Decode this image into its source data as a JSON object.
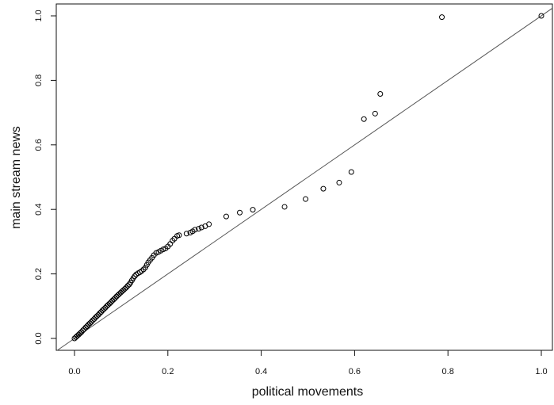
{
  "chart_data": {
    "type": "scatter",
    "title": "",
    "xlabel": "political movements",
    "ylabel": "main stream news",
    "xlim": [
      0,
      1
    ],
    "ylim": [
      0,
      1
    ],
    "x_ticks": [
      "0.0",
      "0.2",
      "0.4",
      "0.6",
      "0.8",
      "1.0"
    ],
    "y_ticks": [
      "0.0",
      "0.2",
      "0.4",
      "0.6",
      "0.8",
      "1.0"
    ],
    "reference_line": "y = x",
    "grid": false,
    "marker": "open-circle",
    "point_color": "#000000",
    "line_color": "#555555",
    "points": [
      [
        0.0,
        0.0
      ],
      [
        0.003,
        0.004
      ],
      [
        0.006,
        0.008
      ],
      [
        0.009,
        0.012
      ],
      [
        0.012,
        0.016
      ],
      [
        0.015,
        0.02
      ],
      [
        0.018,
        0.025
      ],
      [
        0.021,
        0.029
      ],
      [
        0.024,
        0.034
      ],
      [
        0.027,
        0.038
      ],
      [
        0.03,
        0.043
      ],
      [
        0.033,
        0.047
      ],
      [
        0.036,
        0.051
      ],
      [
        0.039,
        0.056
      ],
      [
        0.042,
        0.06
      ],
      [
        0.045,
        0.065
      ],
      [
        0.048,
        0.069
      ],
      [
        0.051,
        0.073
      ],
      [
        0.054,
        0.078
      ],
      [
        0.057,
        0.082
      ],
      [
        0.06,
        0.087
      ],
      [
        0.063,
        0.091
      ],
      [
        0.066,
        0.095
      ],
      [
        0.069,
        0.1
      ],
      [
        0.072,
        0.104
      ],
      [
        0.075,
        0.108
      ],
      [
        0.078,
        0.112
      ],
      [
        0.081,
        0.117
      ],
      [
        0.084,
        0.121
      ],
      [
        0.087,
        0.125
      ],
      [
        0.09,
        0.13
      ],
      [
        0.093,
        0.134
      ],
      [
        0.096,
        0.138
      ],
      [
        0.099,
        0.142
      ],
      [
        0.102,
        0.146
      ],
      [
        0.105,
        0.15
      ],
      [
        0.108,
        0.154
      ],
      [
        0.111,
        0.158
      ],
      [
        0.114,
        0.163
      ],
      [
        0.117,
        0.167
      ],
      [
        0.12,
        0.173
      ],
      [
        0.123,
        0.18
      ],
      [
        0.126,
        0.187
      ],
      [
        0.129,
        0.193
      ],
      [
        0.132,
        0.198
      ],
      [
        0.136,
        0.202
      ],
      [
        0.14,
        0.205
      ],
      [
        0.144,
        0.209
      ],
      [
        0.148,
        0.214
      ],
      [
        0.152,
        0.22
      ],
      [
        0.155,
        0.228
      ],
      [
        0.158,
        0.236
      ],
      [
        0.162,
        0.243
      ],
      [
        0.166,
        0.25
      ],
      [
        0.17,
        0.258
      ],
      [
        0.175,
        0.265
      ],
      [
        0.18,
        0.268
      ],
      [
        0.185,
        0.272
      ],
      [
        0.19,
        0.276
      ],
      [
        0.195,
        0.279
      ],
      [
        0.2,
        0.285
      ],
      [
        0.205,
        0.293
      ],
      [
        0.21,
        0.303
      ],
      [
        0.214,
        0.309
      ],
      [
        0.22,
        0.318
      ],
      [
        0.224,
        0.32
      ],
      [
        0.24,
        0.325
      ],
      [
        0.248,
        0.328
      ],
      [
        0.253,
        0.332
      ],
      [
        0.258,
        0.337
      ],
      [
        0.266,
        0.34
      ],
      [
        0.272,
        0.344
      ],
      [
        0.28,
        0.348
      ],
      [
        0.288,
        0.354
      ],
      [
        0.325,
        0.378
      ],
      [
        0.354,
        0.39
      ],
      [
        0.382,
        0.399
      ],
      [
        0.45,
        0.408
      ],
      [
        0.495,
        0.432
      ],
      [
        0.533,
        0.464
      ],
      [
        0.567,
        0.483
      ],
      [
        0.593,
        0.516
      ],
      [
        0.62,
        0.68
      ],
      [
        0.644,
        0.697
      ],
      [
        0.655,
        0.758
      ],
      [
        0.787,
        0.996
      ],
      [
        1.0,
        1.0
      ]
    ]
  }
}
